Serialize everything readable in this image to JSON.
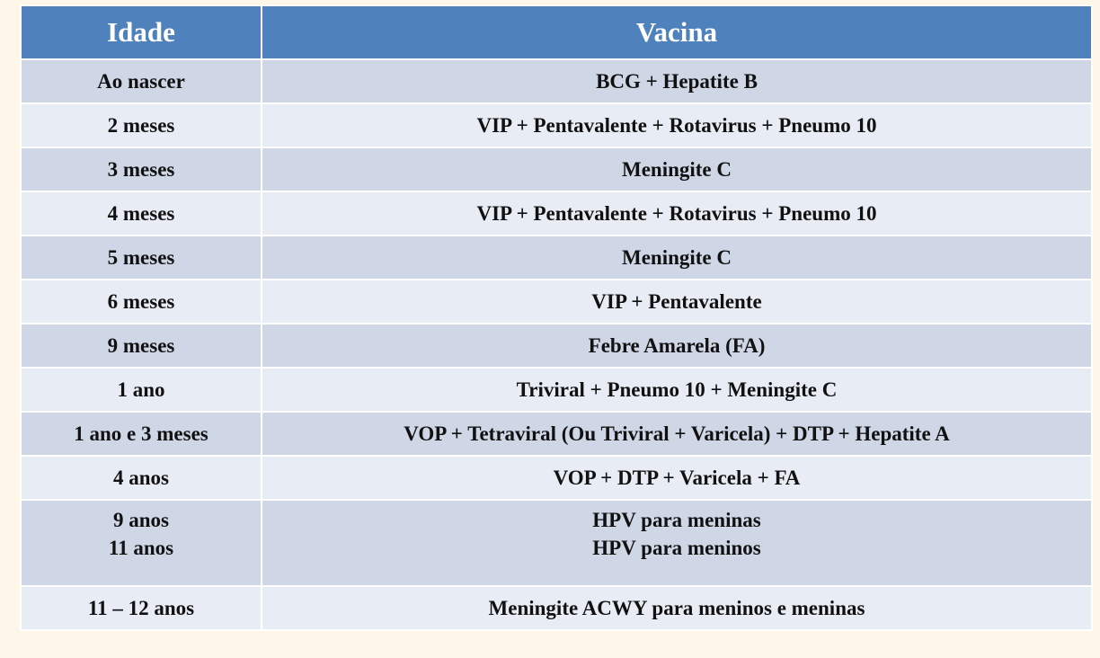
{
  "table": {
    "headers": [
      "Idade",
      "Vacina"
    ],
    "rows": [
      {
        "age": "Ao nascer",
        "vaccine": "BCG + Hepatite B"
      },
      {
        "age": "2 meses",
        "vaccine": "VIP + Pentavalente + Rotavirus + Pneumo 10"
      },
      {
        "age": "3 meses",
        "vaccine": "Meningite C"
      },
      {
        "age": "4 meses",
        "vaccine": "VIP + Pentavalente + Rotavirus + Pneumo 10"
      },
      {
        "age": "5 meses",
        "vaccine": "Meningite C"
      },
      {
        "age": "6 meses",
        "vaccine": "VIP + Pentavalente"
      },
      {
        "age": "9 meses",
        "vaccine": "Febre Amarela (FA)"
      },
      {
        "age": "1 ano",
        "vaccine": "Triviral + Pneumo 10 + Meningite C"
      },
      {
        "age": "1 ano e 3 meses",
        "vaccine": "VOP + Tetraviral (Ou Triviral + Varicela) + DTP + Hepatite A"
      },
      {
        "age": "4 anos",
        "vaccine": "VOP + DTP  + Varicela + FA"
      },
      {
        "age": "9 anos",
        "age2": "11 anos",
        "vaccine": "HPV para meninas",
        "vaccine2": "HPV para meninos"
      },
      {
        "age": "11 – 12 anos",
        "vaccine": "Meningite ACWY para meninos e meninas"
      }
    ]
  }
}
